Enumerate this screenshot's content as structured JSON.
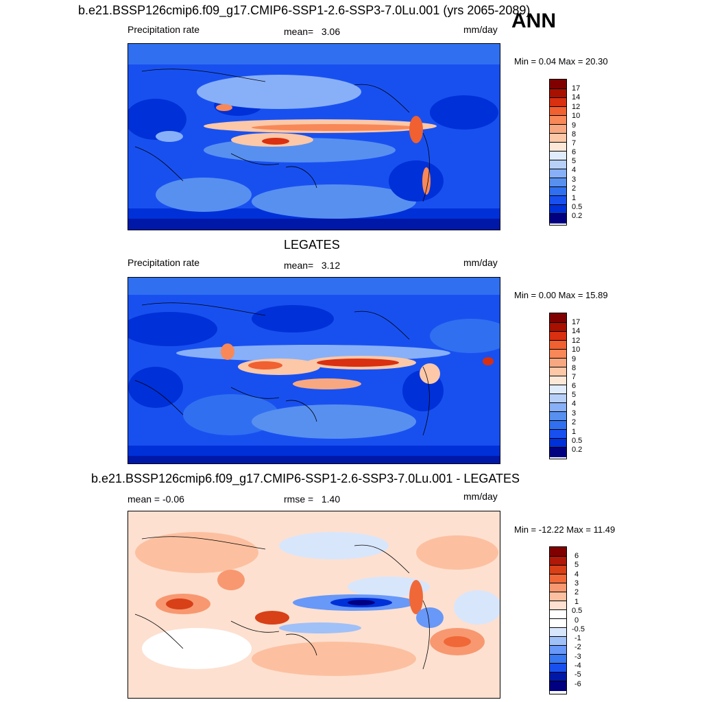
{
  "header": {
    "model_title": "b.e21.BSSP126cmip6.f09_g17.CMIP6-SSP1-2.6-SSP3-7.0Lu.001 (yrs 2065-2089)",
    "season": "ANN"
  },
  "panels": [
    {
      "id": "model",
      "title": "",
      "variable": "Precipitation rate",
      "stat_label": "mean=",
      "stat_value": "3.06",
      "units": "mm/day",
      "minmax": "Min =   0.04 Max =  20.30",
      "colorbar_labels": [
        "17",
        "14",
        "12",
        "10",
        "9",
        "8",
        "7",
        "6",
        "5",
        "4",
        "3",
        "2",
        "1",
        "0.5",
        "0.2"
      ]
    },
    {
      "id": "obs",
      "title": "LEGATES",
      "variable": "Precipitation rate",
      "stat_label": "mean=",
      "stat_value": "3.12",
      "units": "mm/day",
      "minmax": "Min =   0.00 Max =  15.89",
      "colorbar_labels": [
        "17",
        "14",
        "12",
        "10",
        "9",
        "8",
        "7",
        "6",
        "5",
        "4",
        "3",
        "2",
        "1",
        "0.5",
        "0.2"
      ]
    },
    {
      "id": "diff",
      "title": "b.e21.BSSP126cmip6.f09_g17.CMIP6-SSP1-2.6-SSP3-7.0Lu.001 - LEGATES",
      "left_stat": "mean =  -0.06",
      "stat_label": "rmse =",
      "stat_value": "1.40",
      "units": "mm/day",
      "minmax": "Min = -12.22 Max =  11.49",
      "colorbar_labels": [
        "6",
        "5",
        "4",
        "3",
        "2",
        "1",
        "0.5",
        "0",
        "-0.5",
        "-1",
        "-2",
        "-3",
        "-4",
        "-5",
        "-6"
      ]
    }
  ],
  "colors": {
    "precip_scale": [
      "#000080",
      "#0018a8",
      "#0030d8",
      "#1850f0",
      "#3070f0",
      "#5890f0",
      "#88b0f8",
      "#b8d0f8",
      "#e0ecfc",
      "#fde8d8",
      "#fcc8a8",
      "#f8a880",
      "#f88858",
      "#f06030",
      "#d83010",
      "#a81000",
      "#800000"
    ],
    "diff_scale": [
      "#000080",
      "#0018a8",
      "#0030d8",
      "#1850f0",
      "#3878f0",
      "#6898f8",
      "#a0c0f8",
      "#d8e6fc",
      "#ffffff",
      "#fde0d0",
      "#fcc0a0",
      "#f89870",
      "#f06838",
      "#d84018",
      "#b01808",
      "#800000"
    ]
  }
}
